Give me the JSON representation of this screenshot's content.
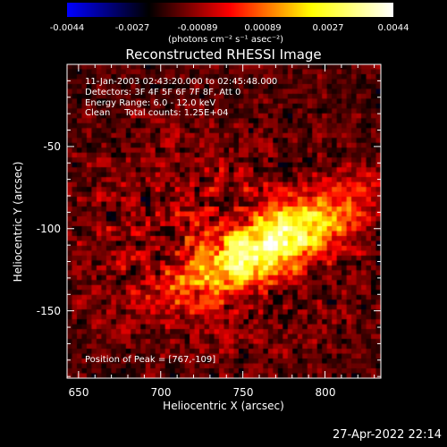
{
  "colorbar": {
    "ticks": [
      "-0.0044",
      "-0.0027",
      "-0.00089",
      "0.00089",
      "0.0027",
      "0.0044"
    ],
    "range": [
      -0.0044,
      0.0044
    ],
    "units": "(photons cm⁻² s⁻¹ asec⁻²)",
    "colors": [
      "#0000ff",
      "#000000",
      "#ff0000",
      "#ffff00",
      "#ffffff"
    ]
  },
  "title": "Reconstructed RHESSI Image",
  "info": {
    "time": "11-Jan-2003 02:43:20.000 to 02:45:48.000",
    "detectors": "Detectors: 3F 4F 5F 6F 7F 8F, Att 0",
    "energy": "Energy Range: 6.0 - 12.0 keV",
    "clean": "Clean     Total counts: 1.25E+04"
  },
  "peak_label": "Position of Peak = [767,-109]",
  "chart_data": {
    "type": "heatmap",
    "title": "Reconstructed RHESSI Image",
    "xlabel": "Heliocentric X (arcsec)",
    "ylabel": "Heliocentric Y (arcsec)",
    "xlim": [
      643,
      834
    ],
    "ylim": [
      -191,
      0
    ],
    "xticks": [
      650,
      700,
      750,
      800
    ],
    "yticks": [
      -50,
      -100,
      -150
    ],
    "peak": [
      767,
      -109
    ],
    "colorscale": [
      "#ffffff",
      "#ffff00",
      "#ff0000",
      "#000000",
      "#0000ff"
    ]
  },
  "timestamp": "27-Apr-2022 22:14"
}
